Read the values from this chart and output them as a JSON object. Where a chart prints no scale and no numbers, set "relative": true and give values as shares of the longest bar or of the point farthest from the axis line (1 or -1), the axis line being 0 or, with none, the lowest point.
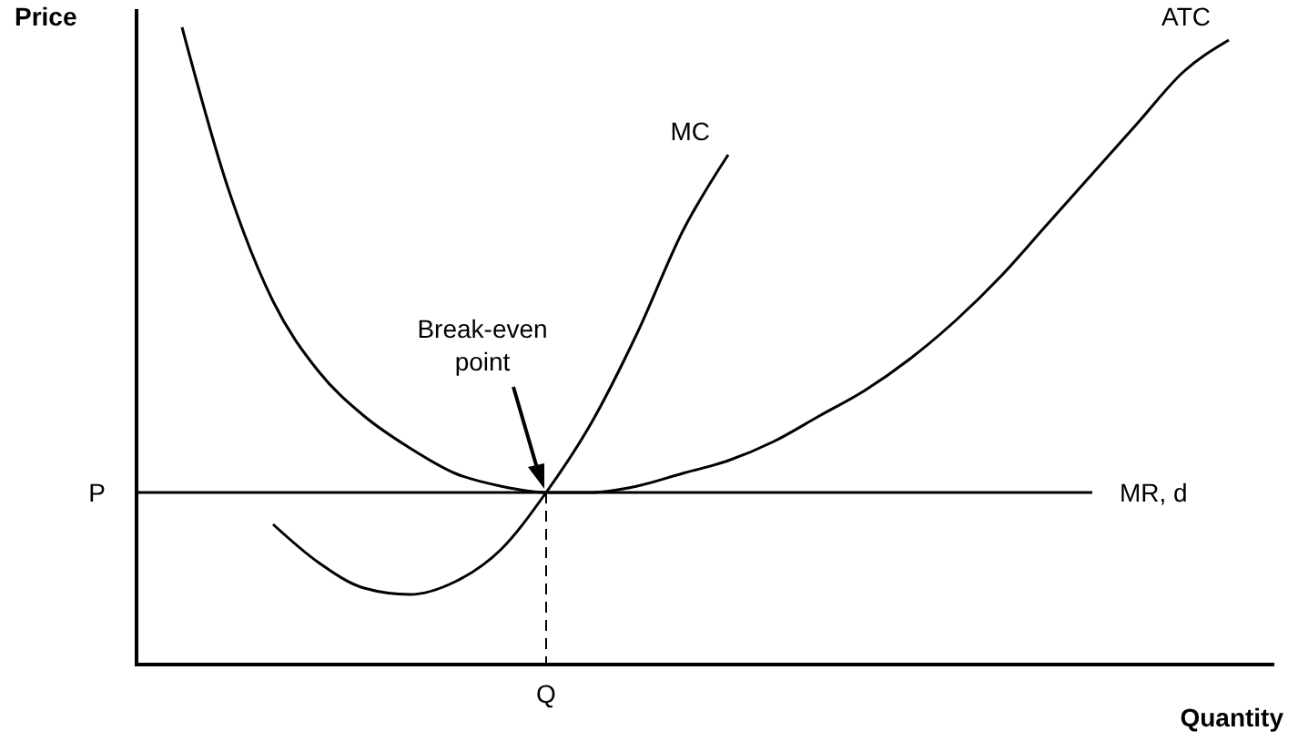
{
  "chart_data": {
    "type": "line",
    "relative": true,
    "xlabel": "Quantity",
    "ylabel": "Price",
    "legend": false,
    "line_style": "solid",
    "marker": "none",
    "categories": [
      null,
      null,
      null,
      null,
      null,
      null,
      null,
      null,
      null,
      null,
      null,
      null,
      null,
      null,
      null,
      null,
      null,
      null,
      null,
      null,
      null,
      null,
      null,
      null,
      null,
      null
    ],
    "series": [
      {
        "name": "ATC",
        "color": "#000000",
        "values": [
          null,
          1.0,
          0.75,
          0.57,
          0.46,
          0.39,
          0.34,
          0.3,
          0.28,
          0.27,
          0.27,
          0.28,
          0.3,
          0.32,
          0.35,
          0.39,
          0.43,
          0.48,
          0.54,
          0.61,
          0.69,
          0.77,
          0.85,
          0.93,
          0.98,
          null
        ]
      },
      {
        "name": "MC",
        "color": "#000000",
        "values": [
          null,
          null,
          null,
          0.22,
          0.16,
          0.12,
          0.11,
          0.13,
          0.18,
          0.27,
          0.38,
          0.52,
          0.68,
          0.8,
          null,
          null,
          null,
          null,
          null,
          null,
          null,
          null,
          null,
          null,
          null,
          null
        ]
      },
      {
        "name": "MR, d",
        "color": "#000000",
        "values": [
          0.27,
          0.27,
          0.27,
          0.27,
          0.27,
          0.27,
          0.27,
          0.27,
          0.27,
          0.27,
          0.27,
          0.27,
          0.27,
          0.27,
          0.27,
          0.27,
          0.27,
          0.27,
          0.27,
          0.27,
          0.27,
          0.27,
          null,
          null,
          null,
          null
        ]
      }
    ],
    "annotations": [
      "Break-even point",
      "P",
      "Q"
    ]
  }
}
